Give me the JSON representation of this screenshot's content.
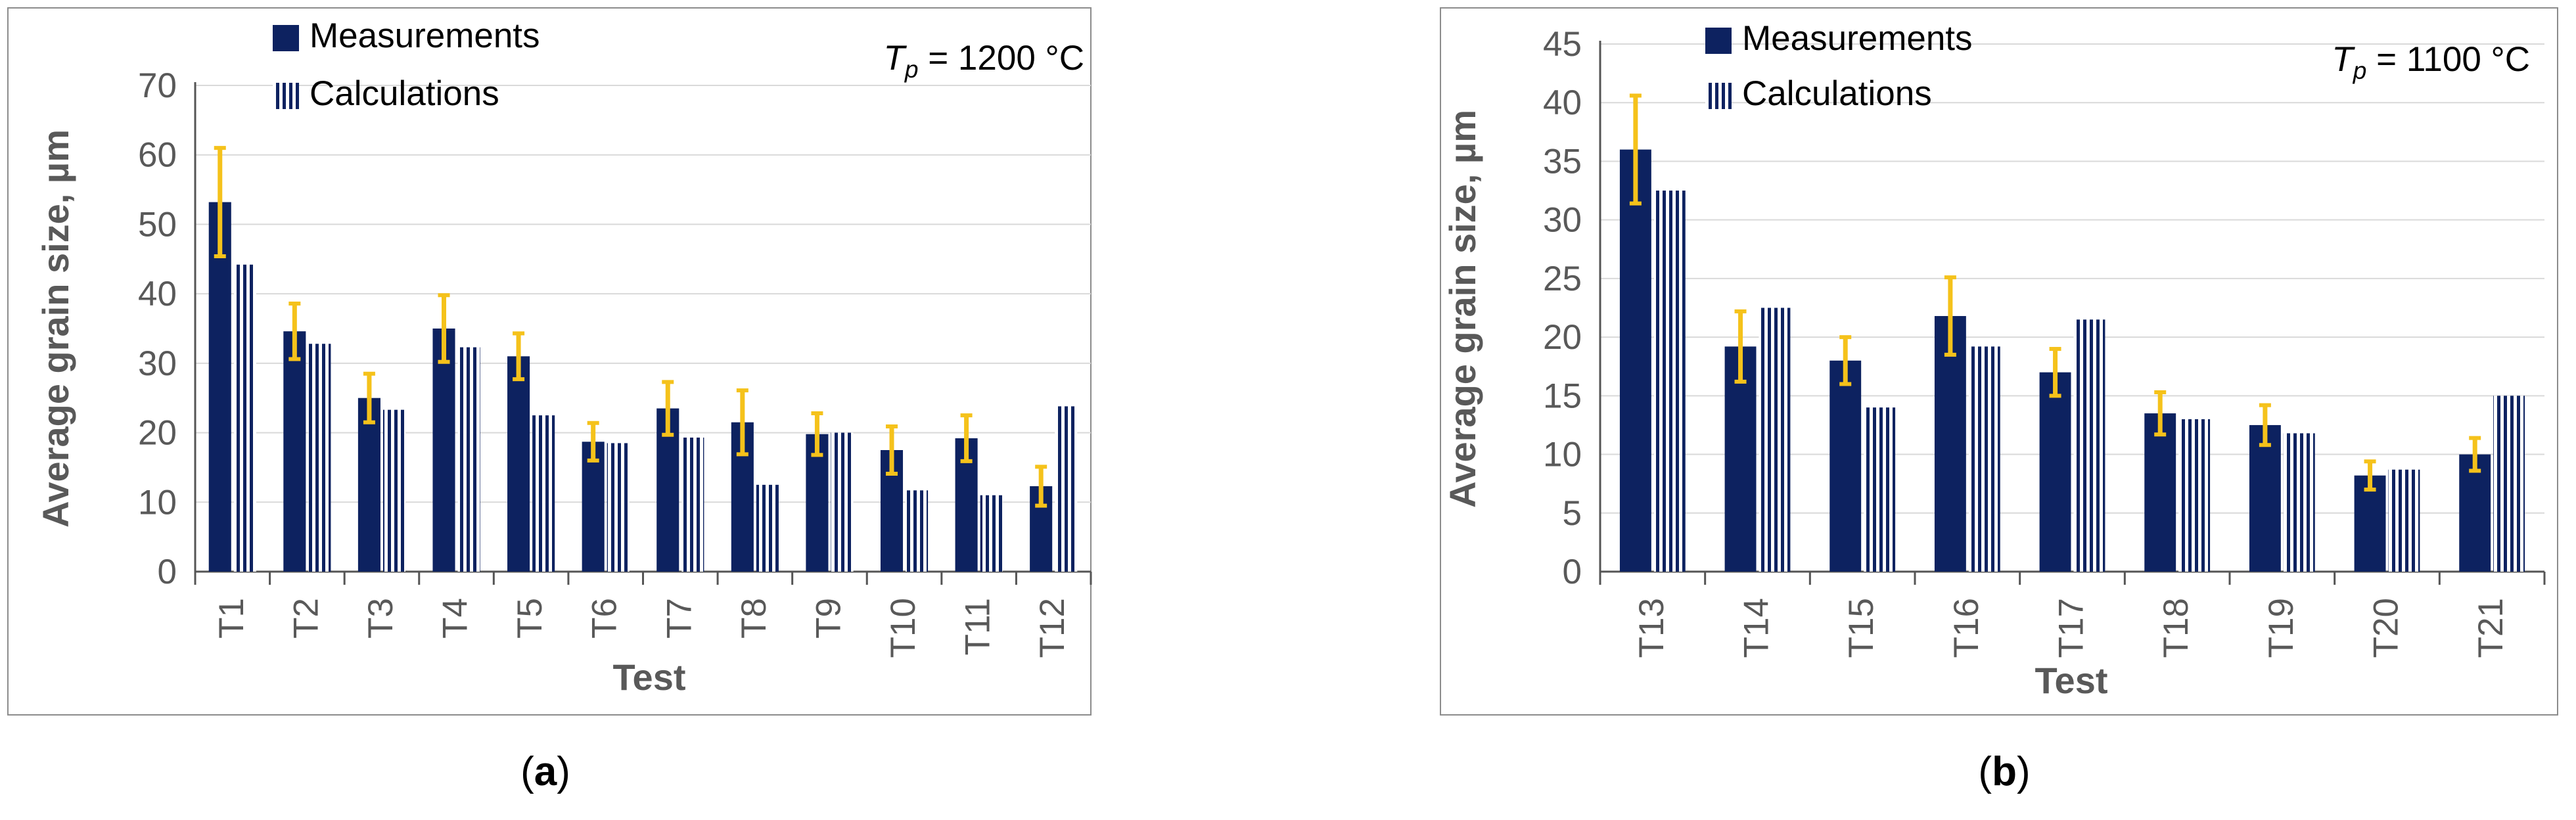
{
  "chart_data": [
    {
      "type": "bar",
      "panel_label": "a",
      "annotation": {
        "base": "T",
        "sub": "p",
        "text": " = 1200 °C"
      },
      "xlabel": "Test",
      "ylabel": "Average grain size, µm",
      "ylim": [
        0,
        70
      ],
      "yticks": [
        0,
        10,
        20,
        30,
        40,
        50,
        60,
        70
      ],
      "grid": true,
      "legend": "top-left",
      "categories": [
        "T1",
        "T2",
        "T3",
        "T4",
        "T5",
        "T6",
        "T7",
        "T8",
        "T9",
        "T10",
        "T11",
        "T12"
      ],
      "series": [
        {
          "name": "Measurements",
          "style": "solid",
          "values": [
            53.2,
            34.6,
            25.0,
            35.0,
            31.0,
            18.7,
            23.5,
            21.5,
            19.8,
            17.5,
            19.2,
            12.3
          ],
          "errors": [
            7.8,
            4.0,
            3.5,
            4.8,
            3.3,
            2.7,
            3.8,
            4.6,
            3.0,
            3.4,
            3.3,
            2.8
          ]
        },
        {
          "name": "Calculations",
          "style": "striped",
          "values": [
            44.2,
            32.8,
            23.3,
            32.3,
            22.5,
            18.5,
            19.3,
            12.5,
            20.0,
            11.7,
            11.0,
            23.8
          ]
        }
      ]
    },
    {
      "type": "bar",
      "panel_label": "b",
      "annotation": {
        "base": "T",
        "sub": "p",
        "text": " = 1100 °C"
      },
      "xlabel": "Test",
      "ylabel": "Average grain size, µm",
      "ylim": [
        0,
        45
      ],
      "yticks": [
        0,
        5,
        10,
        15,
        20,
        25,
        30,
        35,
        40,
        45
      ],
      "grid": true,
      "legend": "top-left",
      "categories": [
        "T13",
        "T14",
        "T15",
        "T16",
        "T17",
        "T18",
        "T19",
        "T20",
        "T21"
      ],
      "series": [
        {
          "name": "Measurements",
          "style": "solid",
          "values": [
            36.0,
            19.2,
            18.0,
            21.8,
            17.0,
            13.5,
            12.5,
            8.2,
            10.0
          ],
          "errors": [
            4.6,
            3.0,
            2.0,
            3.3,
            2.0,
            1.8,
            1.7,
            1.2,
            1.4
          ]
        },
        {
          "name": "Calculations",
          "style": "striped",
          "values": [
            32.5,
            22.5,
            14.0,
            19.2,
            21.5,
            13.0,
            11.8,
            8.7,
            15.0
          ]
        }
      ]
    }
  ],
  "colors": {
    "measure": "#0d2260",
    "error": "#f5c21b",
    "axis": "#555555",
    "grid": "#d9d9d9",
    "border": "#8c8c8c",
    "text": "#595959"
  }
}
